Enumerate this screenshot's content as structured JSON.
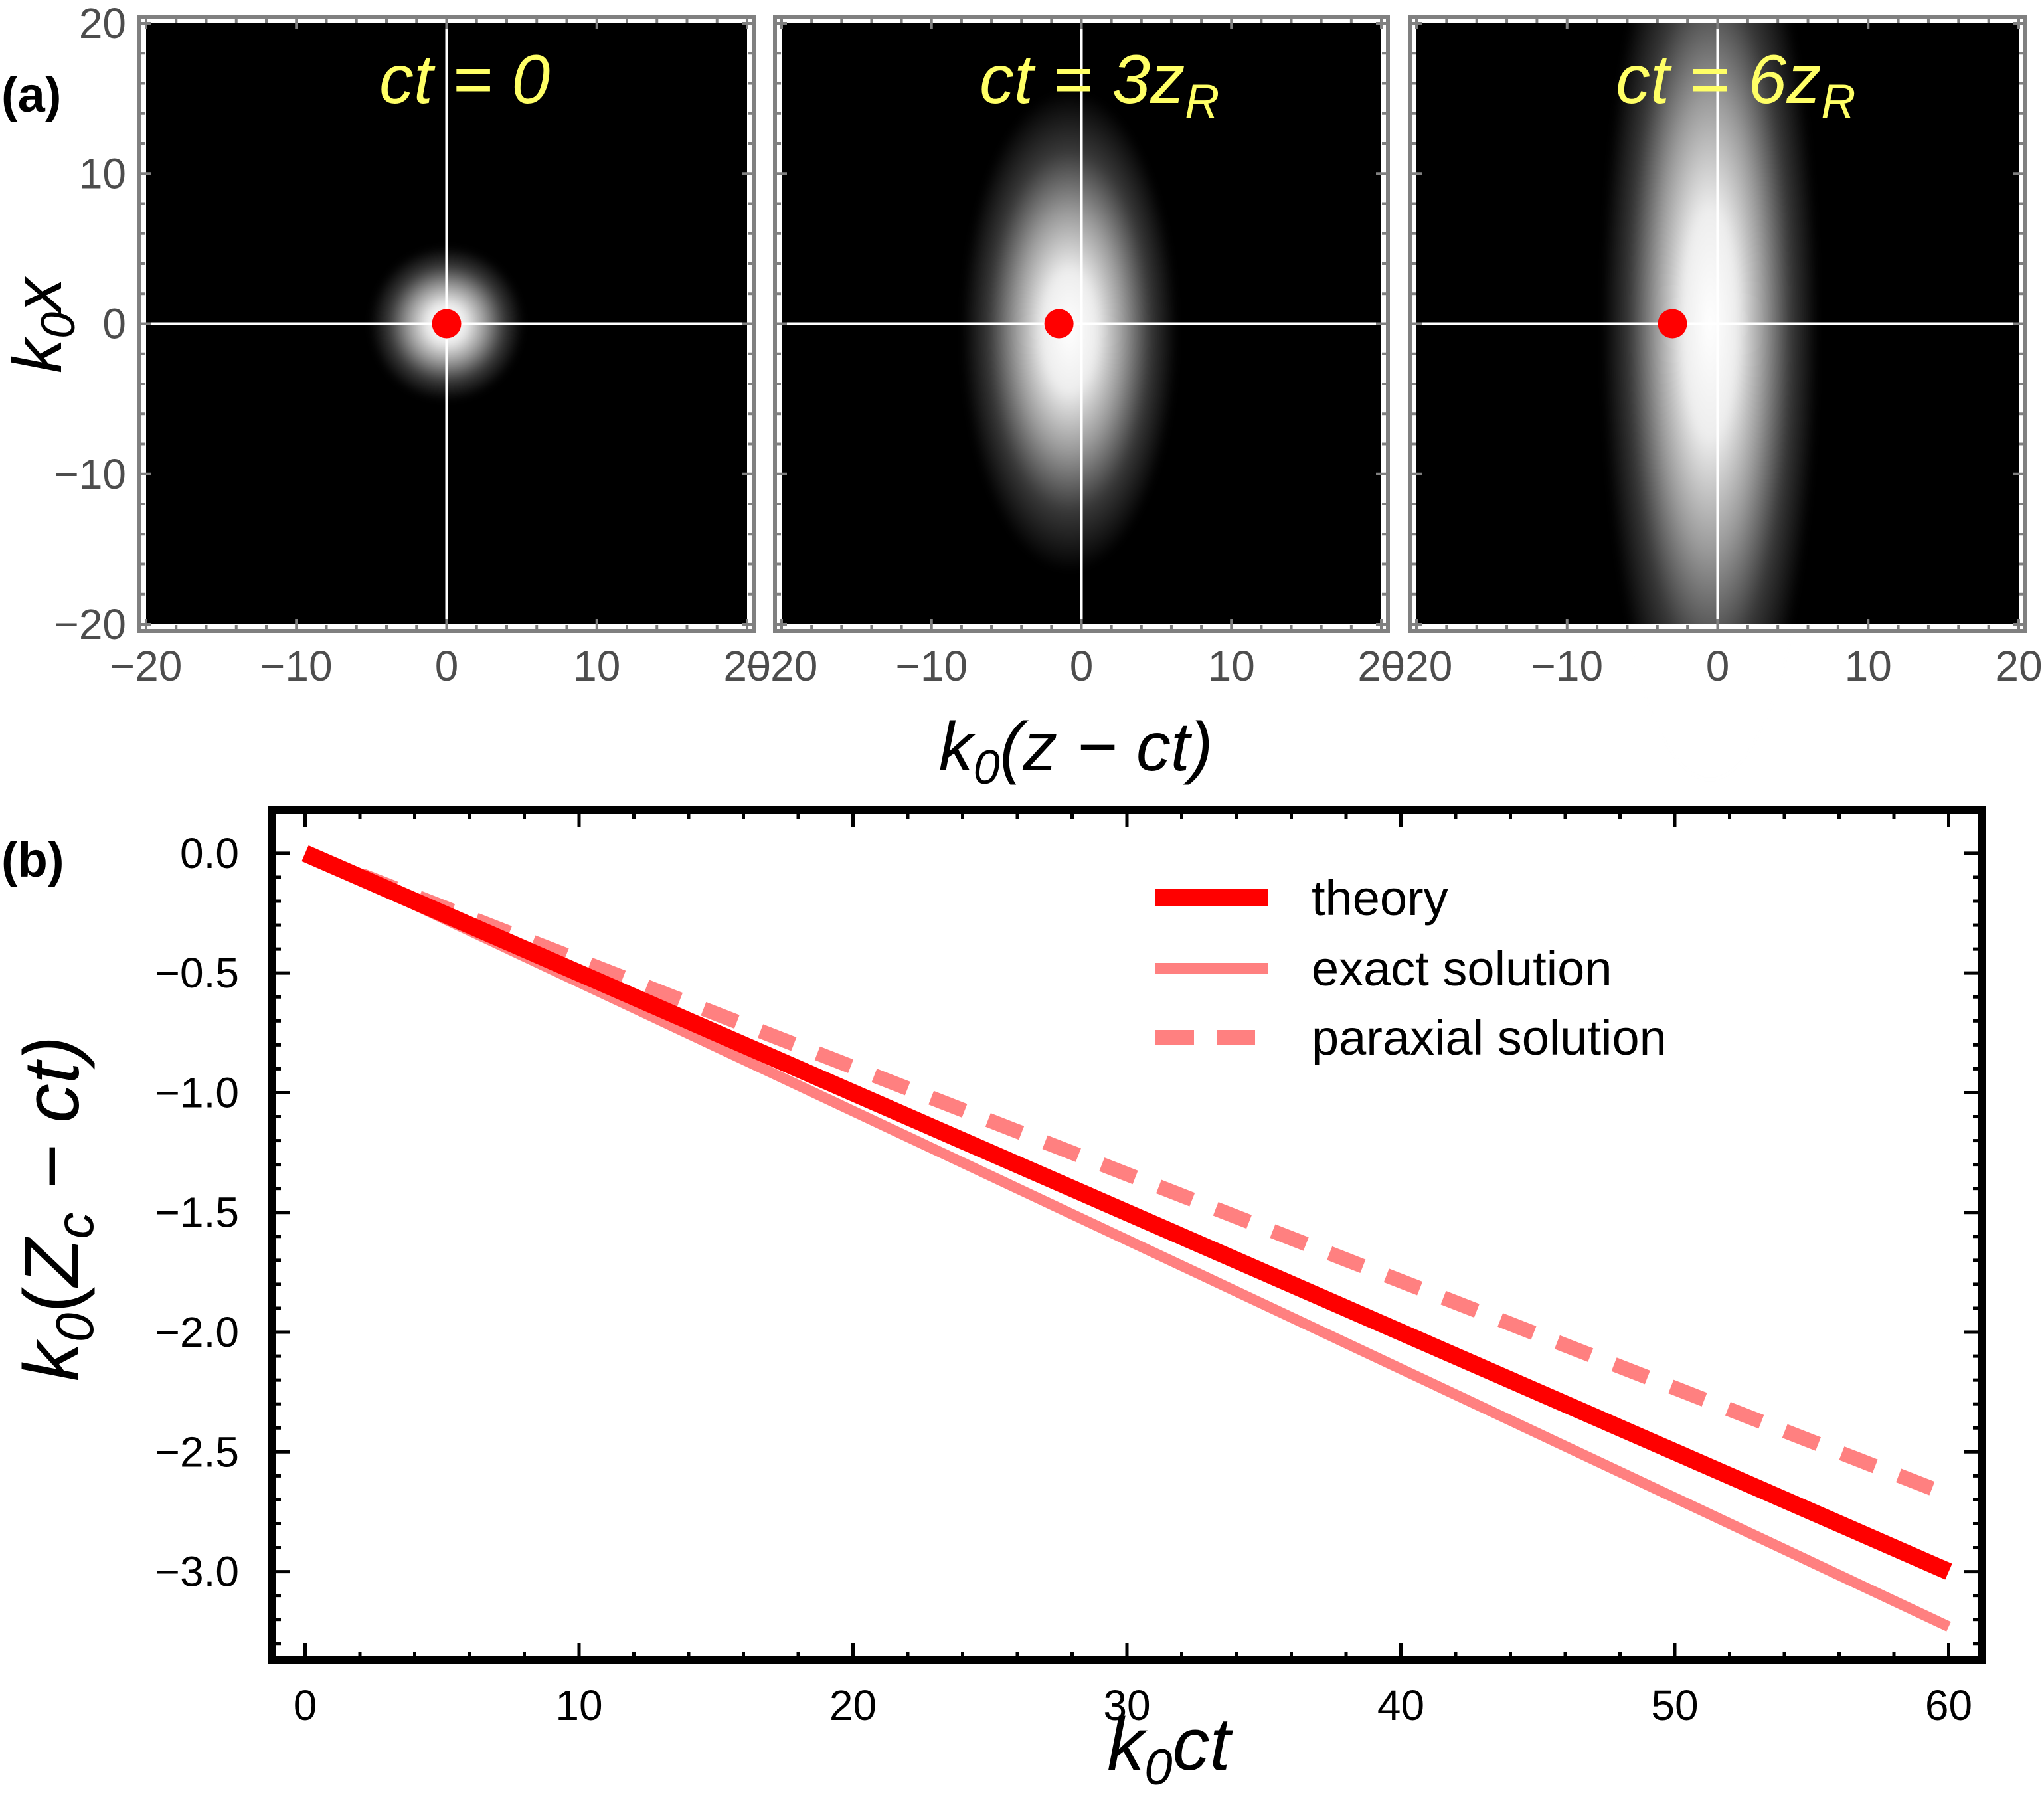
{
  "colors": {
    "theory": "#ff0000",
    "exact": "#ff8080",
    "paraxial": "#ff8080",
    "annotation": "#ffff66",
    "marker": "#ff0000",
    "map_background": "#000000",
    "frame_a": "#808080",
    "frame_b": "#000000"
  },
  "panel_labels": {
    "a": "(a)",
    "b": "(b)"
  },
  "panel_a": {
    "ylabel": {
      "k": "k",
      "sub": "0",
      "var": "x"
    },
    "xlabel": {
      "k": "k",
      "sub": "0",
      "rest": "(z − ct)"
    },
    "x_ticks": [
      "−20",
      "−10",
      "0",
      "10",
      "20"
    ],
    "y_ticks": [
      "20",
      "10",
      "0",
      "−10",
      "−20"
    ],
    "x_range": [
      -20,
      20
    ],
    "y_range": [
      -20,
      20
    ],
    "subplots": [
      {
        "label_main": "ct = 0",
        "label_sub": "",
        "beam_center": {
          "z": 0,
          "x": 0
        },
        "beam_width": {
          "z": 3.2,
          "x": 3.2
        },
        "dot": {
          "z": 0,
          "x": 0
        }
      },
      {
        "label_main": "ct = 3z",
        "label_sub": "R",
        "beam_center": {
          "z": -0.8,
          "x": -0.5
        },
        "beam_width": {
          "z": 4.5,
          "x": 10
        },
        "dot": {
          "z": -1.5,
          "x": 0
        }
      },
      {
        "label_main": "ct = 6z",
        "label_sub": "R",
        "beam_center": {
          "z": -0.5,
          "x": 0
        },
        "beam_width": {
          "z": 4.5,
          "x": 19
        },
        "dot": {
          "z": -3,
          "x": 0
        }
      }
    ]
  },
  "chart_data": {
    "type": "line",
    "xlabel": {
      "k": "k",
      "sub": "0",
      "rest": "ct"
    },
    "ylabel": {
      "k": "k",
      "sub": "0",
      "open": "(",
      "Z": "Z",
      "Zsub": "c",
      "rest": " − ct)"
    },
    "x_ticks": [
      "0",
      "10",
      "20",
      "30",
      "40",
      "50",
      "60"
    ],
    "y_ticks": [
      "0.0",
      "−0.5",
      "−1.0",
      "−1.5",
      "−2.0",
      "−2.5",
      "−3.0"
    ],
    "xlim": [
      -1.2,
      61.2
    ],
    "ylim": [
      -3.37,
      0.18
    ],
    "legend_position": "top-right",
    "series": [
      {
        "name": "theory",
        "style": "solid-thick",
        "x": [
          0,
          60
        ],
        "y": [
          0.0,
          -3.0
        ]
      },
      {
        "name": "exact solution",
        "style": "solid-thin",
        "x": [
          0,
          60
        ],
        "y": [
          0.0,
          -3.23
        ]
      },
      {
        "name": "paraxial solution",
        "style": "dashed",
        "x": [
          0,
          60
        ],
        "y": [
          0.0,
          -2.68
        ]
      }
    ]
  }
}
